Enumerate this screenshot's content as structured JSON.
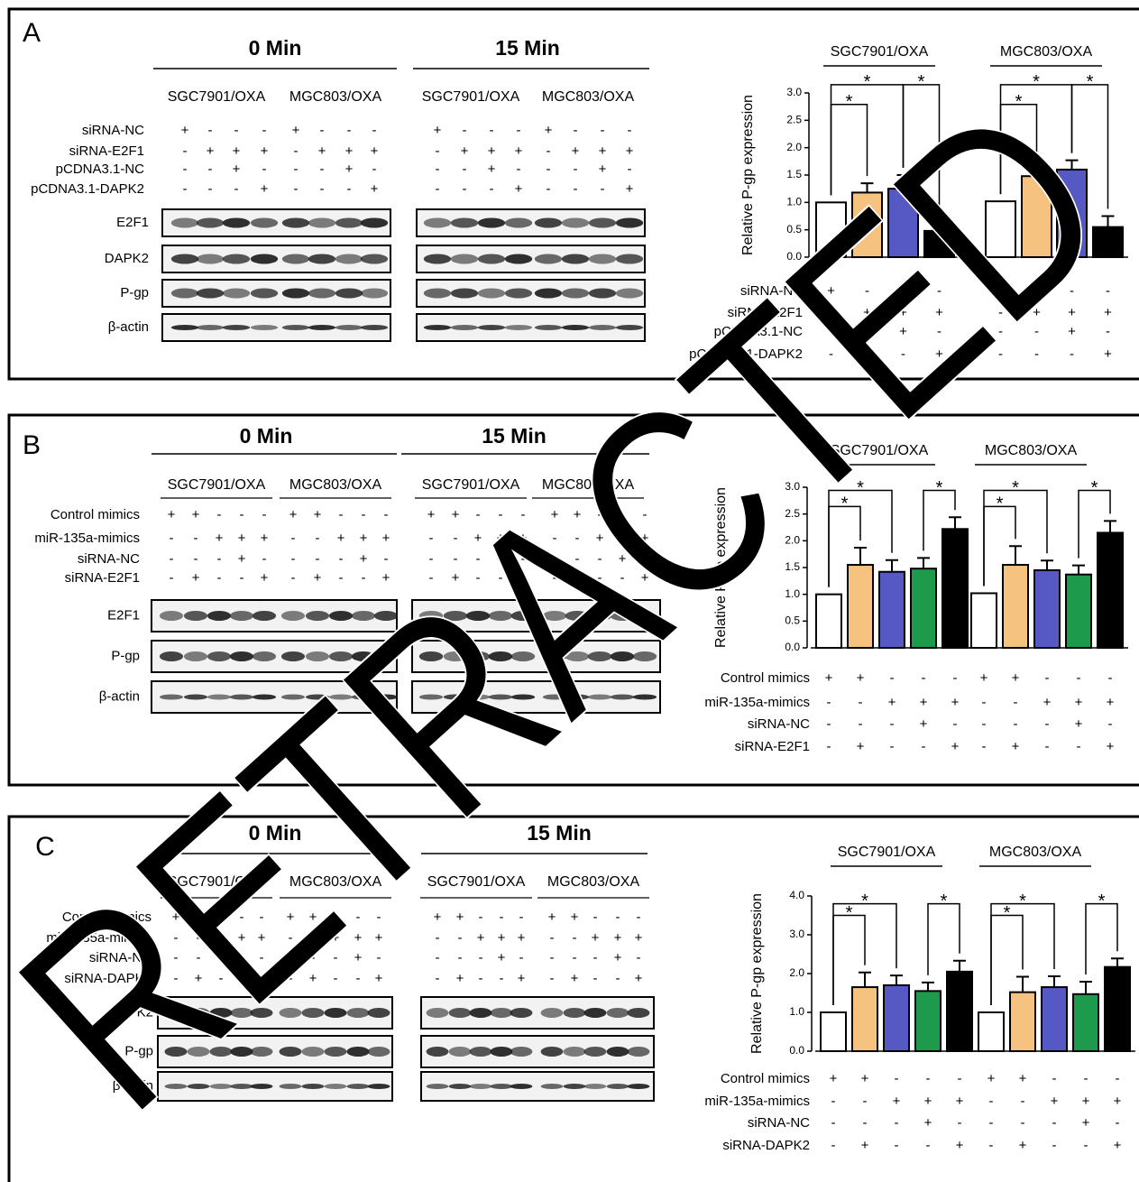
{
  "watermark": "RETRACTED",
  "panels": [
    {
      "letter": "A",
      "timepoints": [
        "0 Min",
        "15 Min"
      ],
      "cell_lines": [
        "SGC7901/OXA",
        "MGC803/OXA"
      ],
      "proteins": [
        "E2F1",
        "DAPK2",
        "P-gp",
        "β-actin"
      ]
    },
    {
      "letter": "B",
      "timepoints": [
        "0 Min",
        "15 Min"
      ],
      "cell_lines": [
        "SGC7901/OXA",
        "MGC803/OXA"
      ],
      "proteins": [
        "E2F1",
        "P-gp",
        "β-actin"
      ]
    },
    {
      "letter": "C",
      "timepoints": [
        "0 Min",
        "15 Min"
      ],
      "cell_lines": [
        "SGC7901/OXA",
        "MGC803/OXA"
      ],
      "proteins": [
        "DAPK2",
        "P-gp",
        "β-actin"
      ]
    }
  ],
  "chart_data": [
    {
      "type": "bar",
      "ylabel": "Relative P-gp expression",
      "categories": [
        "SGC7901/OXA",
        "MGC803/OXA"
      ],
      "series": [
        {
          "color": "#ffffff",
          "values": [
            1.0,
            1.02
          ],
          "errors": [
            null,
            null
          ]
        },
        {
          "color": "#f6c27f",
          "values": [
            1.18,
            1.48
          ],
          "errors": [
            0.17,
            0.2
          ]
        },
        {
          "color": "#5658c4",
          "values": [
            1.25,
            1.6
          ],
          "errors": [
            0.25,
            0.17
          ]
        },
        {
          "color": "#000000",
          "values": [
            0.48,
            0.55
          ],
          "errors": [
            0.25,
            0.2
          ]
        }
      ],
      "ylim": [
        0,
        3
      ],
      "yticks": [
        {
          "value": 0,
          "label": "0.0"
        },
        {
          "value": 0.5,
          "label": "0.5"
        },
        {
          "value": 1,
          "label": "1.0"
        },
        {
          "value": 1.5,
          "label": "1.5"
        },
        {
          "value": 2,
          "label": "2.0"
        },
        {
          "value": 2.5,
          "label": "2.5"
        },
        {
          "value": 3,
          "label": "3.0"
        }
      ],
      "significance": [
        [
          "*",
          "*",
          "*"
        ],
        [
          "*",
          "*",
          "*"
        ]
      ],
      "conditions": [
        {
          "label": "siRNA-NC",
          "signs": [
            "+",
            "-",
            "-",
            "-"
          ]
        },
        {
          "label": "siRNA-E2F1",
          "signs": [
            "-",
            "+",
            "+",
            "+"
          ]
        },
        {
          "label": "pCDNA3.1-NC",
          "signs": [
            "-",
            "-",
            "+",
            "-"
          ]
        },
        {
          "label": "pCDNA3.1-DAPK2",
          "signs": [
            "-",
            "-",
            "-",
            "+"
          ]
        }
      ]
    },
    {
      "type": "bar",
      "ylabel": "Relative P-gp expression",
      "categories": [
        "SGC7901/OXA",
        "MGC803/OXA"
      ],
      "series": [
        {
          "color": "#ffffff",
          "values": [
            1.0,
            1.02
          ],
          "errors": [
            null,
            null
          ]
        },
        {
          "color": "#f6c27f",
          "values": [
            1.55,
            1.55
          ],
          "errors": [
            0.32,
            0.35
          ]
        },
        {
          "color": "#5658c4",
          "values": [
            1.42,
            1.45
          ],
          "errors": [
            0.22,
            0.18
          ]
        },
        {
          "color": "#1d9a4c",
          "values": [
            1.48,
            1.37
          ],
          "errors": [
            0.2,
            0.17
          ]
        },
        {
          "color": "#000000",
          "values": [
            2.22,
            2.15
          ],
          "errors": [
            0.22,
            0.22
          ]
        }
      ],
      "ylim": [
        0,
        3
      ],
      "yticks": [
        {
          "value": 0,
          "label": "0.0"
        },
        {
          "value": 0.5,
          "label": "0.5"
        },
        {
          "value": 1,
          "label": "1.0"
        },
        {
          "value": 1.5,
          "label": "1.5"
        },
        {
          "value": 2,
          "label": "2.0"
        },
        {
          "value": 2.5,
          "label": "2.5"
        },
        {
          "value": 3,
          "label": "3.0"
        }
      ],
      "significance": [
        [
          "*",
          "*",
          "*"
        ],
        [
          "*",
          "*",
          "*"
        ]
      ],
      "conditions": [
        {
          "label": "Control mimics",
          "signs": [
            "+",
            "+",
            "-",
            "-",
            "-"
          ]
        },
        {
          "label": "miR-135a-mimics",
          "signs": [
            "-",
            "-",
            "+",
            "+",
            "+"
          ]
        },
        {
          "label": "siRNA-NC",
          "signs": [
            "-",
            "-",
            "-",
            "+",
            "-"
          ]
        },
        {
          "label": "siRNA-E2F1",
          "signs": [
            "-",
            "+",
            "-",
            "-",
            "+"
          ]
        }
      ]
    },
    {
      "type": "bar",
      "ylabel": "Relative P-gp expression",
      "categories": [
        "SGC7901/OXA",
        "MGC803/OXA"
      ],
      "series": [
        {
          "color": "#ffffff",
          "values": [
            1.0,
            1.0
          ],
          "errors": [
            null,
            null
          ]
        },
        {
          "color": "#f6c27f",
          "values": [
            1.65,
            1.52
          ],
          "errors": [
            0.38,
            0.4
          ]
        },
        {
          "color": "#5658c4",
          "values": [
            1.7,
            1.65
          ],
          "errors": [
            0.25,
            0.28
          ]
        },
        {
          "color": "#1d9a4c",
          "values": [
            1.55,
            1.47
          ],
          "errors": [
            0.22,
            0.32
          ]
        },
        {
          "color": "#000000",
          "values": [
            2.05,
            2.17
          ],
          "errors": [
            0.28,
            0.22
          ]
        }
      ],
      "ylim": [
        0,
        4
      ],
      "yticks": [
        {
          "value": 0,
          "label": "0.0"
        },
        {
          "value": 1,
          "label": "1.0"
        },
        {
          "value": 2,
          "label": "2.0"
        },
        {
          "value": 3,
          "label": "3.0"
        },
        {
          "value": 4,
          "label": "4.0"
        }
      ],
      "significance": [
        [
          "*",
          "*",
          "*"
        ],
        [
          "*",
          "*",
          "*"
        ]
      ],
      "conditions": [
        {
          "label": "Control mimics",
          "signs": [
            "+",
            "+",
            "-",
            "-",
            "-"
          ]
        },
        {
          "label": "miR-135a-mimics",
          "signs": [
            "-",
            "-",
            "+",
            "+",
            "+"
          ]
        },
        {
          "label": "siRNA-NC",
          "signs": [
            "-",
            "-",
            "-",
            "+",
            "-"
          ]
        },
        {
          "label": "siRNA-DAPK2",
          "signs": [
            "-",
            "+",
            "-",
            "-",
            "+"
          ]
        }
      ]
    }
  ]
}
